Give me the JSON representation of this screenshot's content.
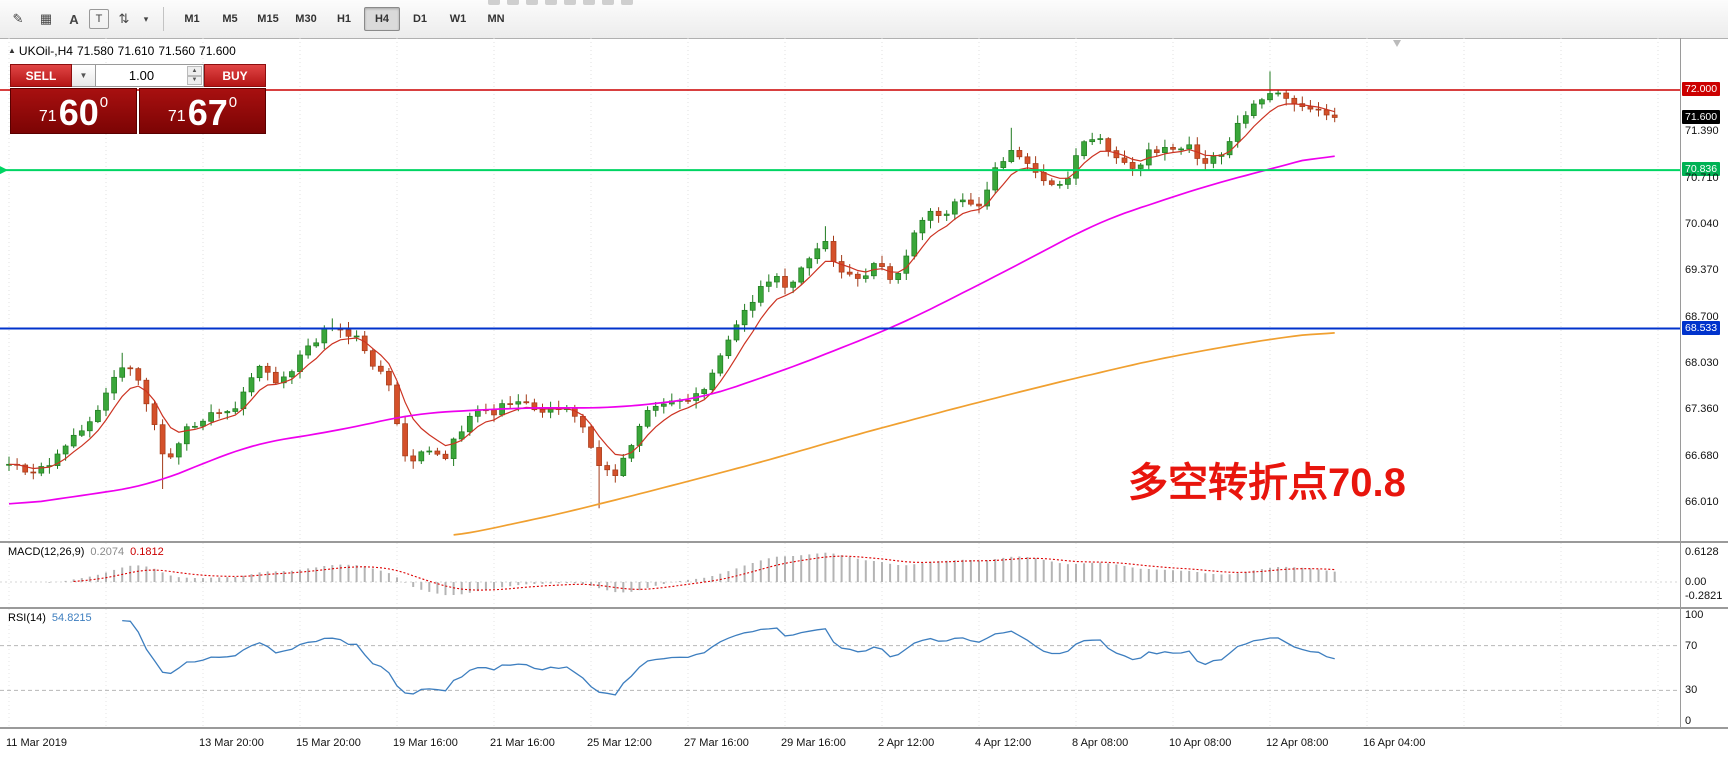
{
  "toolbar": {
    "icons": [
      {
        "name": "crayon-draw-icon",
        "glyph": "✎"
      },
      {
        "name": "grid-comment-icon",
        "glyph": "▦"
      },
      {
        "name": "text-label-icon",
        "glyph": "A"
      },
      {
        "name": "textbox-icon",
        "glyph": "T"
      },
      {
        "name": "objects-list-icon",
        "glyph": "⇅"
      },
      {
        "name": "objects-dropdown-caret-icon",
        "glyph": "▾"
      }
    ],
    "timeframes": [
      "M1",
      "M5",
      "M15",
      "M30",
      "H1",
      "H4",
      "D1",
      "W1",
      "MN"
    ],
    "selected_timeframe": "H4"
  },
  "chart_header": {
    "symbol_period": "UKOil-,H4",
    "open": "71.580",
    "high": "71.610",
    "low": "71.560",
    "close": "71.600"
  },
  "trade_panel": {
    "sell_label": "SELL",
    "buy_label": "BUY",
    "volume": "1.00",
    "bid": {
      "whole": "71",
      "pips": "60",
      "point": "0"
    },
    "ask": {
      "whole": "71",
      "pips": "67",
      "point": "0"
    }
  },
  "annotation": {
    "text": "多空转折点70.8",
    "color": "#e8150d"
  },
  "price_axis_labels": [
    {
      "text": "72.000",
      "price": 72.0,
      "style": "red"
    },
    {
      "text": "71.600",
      "price": 71.6,
      "style": "black"
    },
    {
      "text": "71.390",
      "price": 71.39,
      "style": "plain"
    },
    {
      "text": "70.836",
      "price": 70.836,
      "style": "green"
    },
    {
      "text": "70.710",
      "price": 70.71,
      "style": "plain"
    },
    {
      "text": "70.040",
      "price": 70.04,
      "style": "plain"
    },
    {
      "text": "69.370",
      "price": 69.37,
      "style": "plain"
    },
    {
      "text": "68.700",
      "price": 68.7,
      "style": "plain"
    },
    {
      "text": "68.533",
      "price": 68.533,
      "style": "blue"
    },
    {
      "text": "68.030",
      "price": 68.03,
      "style": "plain"
    },
    {
      "text": "67.360",
      "price": 67.36,
      "style": "plain"
    },
    {
      "text": "66.680",
      "price": 66.68,
      "style": "plain"
    },
    {
      "text": "66.010",
      "price": 66.01,
      "style": "plain"
    }
  ],
  "hlines": [
    {
      "price": 72.0,
      "color": "#cc0000",
      "width": 1.6
    },
    {
      "price": 70.836,
      "color": "#00d563",
      "width": 2
    },
    {
      "price": 68.533,
      "color": "#0033cc",
      "width": 2
    }
  ],
  "macd_panel": {
    "label": "MACD(12,26,9)",
    "value_main": "0.2074",
    "value_signal": "0.1812",
    "axis_labels": [
      {
        "text": "0.6128",
        "value": 0.6128
      },
      {
        "text": "0.00",
        "value": 0
      },
      {
        "text": "-0.2821",
        "value": -0.2821
      }
    ],
    "histogram_color": "#b4b4b4",
    "signal_color": "#dd0000"
  },
  "rsi_panel": {
    "label": "RSI(14)",
    "value": "54.8215",
    "axis_labels": [
      {
        "text": "100",
        "value": 100
      },
      {
        "text": "70",
        "value": 70
      },
      {
        "text": "30",
        "value": 30
      },
      {
        "text": "0",
        "value": 0
      }
    ],
    "levels": [
      70,
      30
    ],
    "line_color": "#3d7ebf"
  },
  "time_axis": [
    "11 Mar 2019",
    "13 Mar 20:00",
    "15 Mar 20:00",
    "19 Mar 16:00",
    "21 Mar 16:00",
    "25 Mar 12:00",
    "27 Mar 16:00",
    "29 Mar 16:00",
    "2 Apr 12:00",
    "4 Apr 12:00",
    "8 Apr 08:00",
    "10 Apr 08:00",
    "12 Apr 08:00",
    "16 Apr 04:00"
  ],
  "chart_data": {
    "type": "candlestick",
    "symbol": "UKOil-",
    "timeframe": "H4",
    "last_close": 71.6,
    "candle_count": 165,
    "visible_price_range": [
      65.45,
      72.76
    ],
    "up_color": "#3aa63a",
    "up_stroke": "#1f7a1f",
    "down_color": "#d4502a",
    "down_stroke": "#a33a18",
    "price_path_anchors": [
      [
        0.0,
        66.55
      ],
      [
        0.02,
        66.45
      ],
      [
        0.039,
        66.7
      ],
      [
        0.065,
        67.3
      ],
      [
        0.085,
        68.0
      ],
      [
        0.098,
        67.8
      ],
      [
        0.111,
        67.1
      ],
      [
        0.118,
        66.5
      ],
      [
        0.131,
        67.0
      ],
      [
        0.15,
        67.3
      ],
      [
        0.17,
        67.35
      ],
      [
        0.19,
        68.05
      ],
      [
        0.203,
        67.65
      ],
      [
        0.222,
        68.2
      ],
      [
        0.242,
        68.55
      ],
      [
        0.261,
        68.45
      ],
      [
        0.275,
        68.0
      ],
      [
        0.288,
        67.65
      ],
      [
        0.294,
        66.95
      ],
      [
        0.301,
        66.55
      ],
      [
        0.314,
        66.85
      ],
      [
        0.327,
        66.6
      ],
      [
        0.34,
        67.05
      ],
      [
        0.353,
        67.35
      ],
      [
        0.366,
        67.3
      ],
      [
        0.379,
        67.5
      ],
      [
        0.392,
        67.4
      ],
      [
        0.405,
        67.3
      ],
      [
        0.418,
        67.45
      ],
      [
        0.431,
        67.25
      ],
      [
        0.444,
        66.6
      ],
      [
        0.458,
        66.4
      ],
      [
        0.471,
        66.95
      ],
      [
        0.484,
        67.4
      ],
      [
        0.497,
        67.5
      ],
      [
        0.51,
        67.45
      ],
      [
        0.523,
        67.65
      ],
      [
        0.536,
        68.1
      ],
      [
        0.549,
        68.6
      ],
      [
        0.562,
        69.0
      ],
      [
        0.575,
        69.3
      ],
      [
        0.588,
        69.1
      ],
      [
        0.601,
        69.45
      ],
      [
        0.614,
        69.85
      ],
      [
        0.627,
        69.35
      ],
      [
        0.641,
        69.2
      ],
      [
        0.654,
        69.55
      ],
      [
        0.667,
        69.2
      ],
      [
        0.68,
        69.75
      ],
      [
        0.693,
        70.3
      ],
      [
        0.706,
        70.15
      ],
      [
        0.719,
        70.45
      ],
      [
        0.732,
        70.35
      ],
      [
        0.745,
        70.9
      ],
      [
        0.758,
        71.1
      ],
      [
        0.771,
        70.85
      ],
      [
        0.784,
        70.55
      ],
      [
        0.797,
        70.7
      ],
      [
        0.81,
        71.2
      ],
      [
        0.824,
        71.25
      ],
      [
        0.837,
        70.95
      ],
      [
        0.85,
        70.85
      ],
      [
        0.863,
        71.15
      ],
      [
        0.876,
        71.1
      ],
      [
        0.889,
        71.2
      ],
      [
        0.902,
        70.95
      ],
      [
        0.915,
        71.1
      ],
      [
        0.928,
        71.5
      ],
      [
        0.941,
        71.8
      ],
      [
        0.954,
        72.0
      ],
      [
        0.967,
        71.9
      ],
      [
        0.98,
        71.7
      ],
      [
        1.0,
        71.6
      ]
    ],
    "wick_overrides": [
      [
        0.085,
        "h",
        68.18
      ],
      [
        0.118,
        "l",
        66.2
      ],
      [
        0.242,
        "h",
        68.68
      ],
      [
        0.444,
        "l",
        65.92
      ],
      [
        0.614,
        "h",
        70.02
      ],
      [
        0.758,
        "h",
        71.45
      ],
      [
        0.954,
        "h",
        72.27
      ]
    ],
    "ma_fast": {
      "color": "#cc3322",
      "period": 6
    },
    "ma_magenta": {
      "color": "#ee00ee",
      "anchors": [
        [
          0.0,
          65.95
        ],
        [
          0.105,
          66.25
        ],
        [
          0.183,
          66.85
        ],
        [
          0.248,
          67.05
        ],
        [
          0.307,
          67.3
        ],
        [
          0.386,
          67.38
        ],
        [
          0.458,
          67.38
        ],
        [
          0.523,
          67.52
        ],
        [
          0.595,
          68.0
        ],
        [
          0.673,
          68.6
        ],
        [
          0.745,
          69.3
        ],
        [
          0.824,
          70.1
        ],
        [
          0.902,
          70.6
        ],
        [
          1.0,
          71.1
        ]
      ]
    },
    "ma_slow": {
      "color": "#f0a030",
      "anchors": [
        [
          0.333,
          65.5
        ],
        [
          0.418,
          65.85
        ],
        [
          0.49,
          66.2
        ],
        [
          0.569,
          66.6
        ],
        [
          0.641,
          67.0
        ],
        [
          0.719,
          67.4
        ],
        [
          0.791,
          67.75
        ],
        [
          0.869,
          68.1
        ],
        [
          0.941,
          68.35
        ],
        [
          1.0,
          68.5
        ]
      ]
    }
  }
}
